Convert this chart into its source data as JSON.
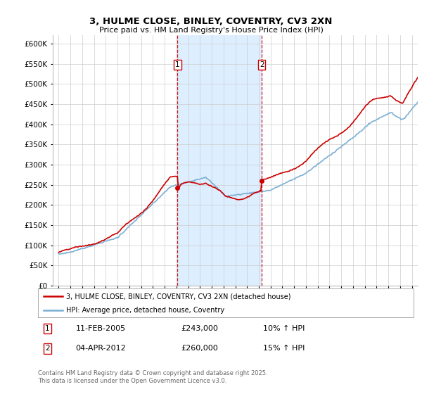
{
  "title_line1": "3, HULME CLOSE, BINLEY, COVENTRY, CV3 2XN",
  "title_line2": "Price paid vs. HM Land Registry's House Price Index (HPI)",
  "legend_entry1": "3, HULME CLOSE, BINLEY, COVENTRY, CV3 2XN (detached house)",
  "legend_entry2": "HPI: Average price, detached house, Coventry",
  "transaction1_date": "11-FEB-2005",
  "transaction1_price": "£243,000",
  "transaction1_hpi": "10% ↑ HPI",
  "transaction2_date": "04-APR-2012",
  "transaction2_price": "£260,000",
  "transaction2_hpi": "15% ↑ HPI",
  "footer": "Contains HM Land Registry data © Crown copyright and database right 2025.\nThis data is licensed under the Open Government Licence v3.0.",
  "hpi_line_color": "#7bafd4",
  "price_line_color": "#cc0000",
  "transaction1_x": 2005.1,
  "transaction2_x": 2012.25,
  "shaded_region_color": "#ddeeff",
  "ylim": [
    0,
    620000
  ],
  "yticks": [
    0,
    50000,
    100000,
    150000,
    200000,
    250000,
    300000,
    350000,
    400000,
    450000,
    500000,
    550000,
    600000
  ],
  "xlim": [
    1994.5,
    2025.5
  ],
  "background_color": "#ffffff",
  "grid_color": "#cccccc"
}
